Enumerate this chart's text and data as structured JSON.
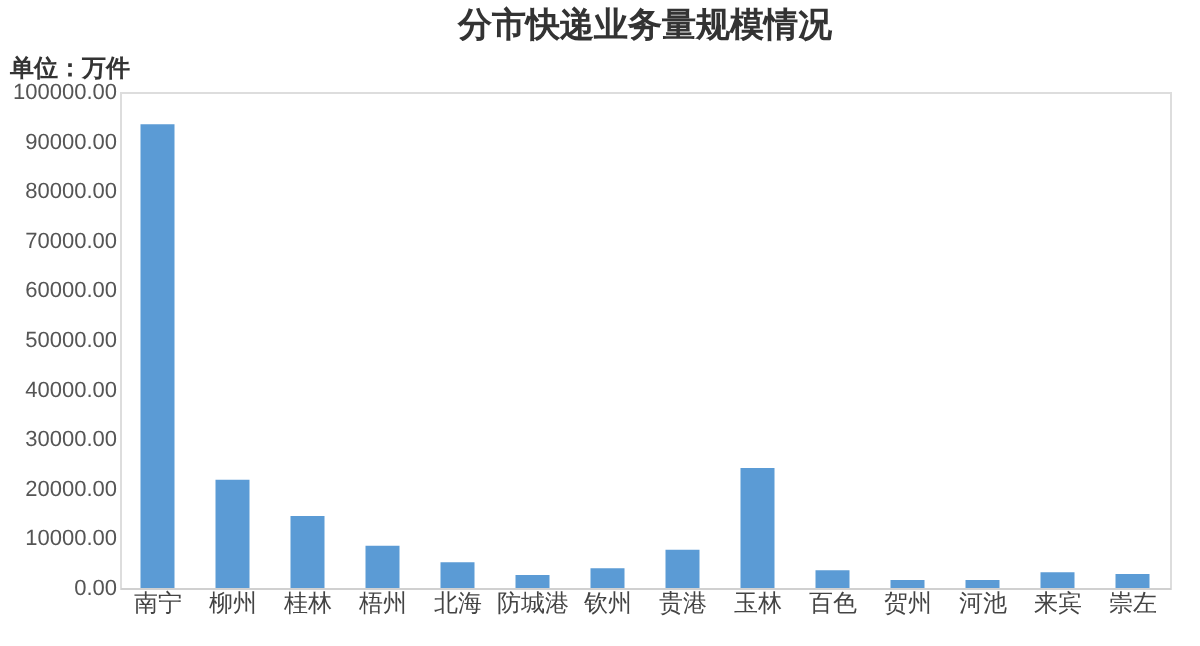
{
  "chart_data": {
    "type": "bar",
    "title": "分市快递业务量规模情况",
    "annotations": [
      "单位：万件"
    ],
    "categories": [
      "南宁",
      "柳州",
      "桂林",
      "梧州",
      "北海",
      "防城港",
      "钦州",
      "贵港",
      "玉林",
      "百色",
      "贺州",
      "河池",
      "来宾",
      "崇左"
    ],
    "values": [
      93500,
      21800,
      14500,
      8500,
      5200,
      2600,
      4000,
      7700,
      24200,
      3600,
      1600,
      1600,
      3200,
      2800
    ],
    "color": "#5b9bd5",
    "ylim": [
      0,
      100000
    ],
    "yticks": [
      {
        "value": 0,
        "label": "0.00"
      },
      {
        "value": 10000,
        "label": "10000.00"
      },
      {
        "value": 20000,
        "label": "20000.00"
      },
      {
        "value": 30000,
        "label": "30000.00"
      },
      {
        "value": 40000,
        "label": "40000.00"
      },
      {
        "value": 50000,
        "label": "50000.00"
      },
      {
        "value": 60000,
        "label": "60000.00"
      },
      {
        "value": 70000,
        "label": "70000.00"
      },
      {
        "value": 80000,
        "label": "80000.00"
      },
      {
        "value": 90000,
        "label": "90000.00"
      },
      {
        "value": 100000,
        "label": "100000.00"
      }
    ],
    "grid": false
  }
}
